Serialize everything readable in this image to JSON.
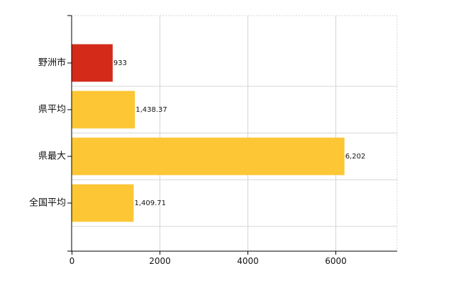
{
  "chart_data": {
    "type": "bar",
    "orientation": "horizontal",
    "categories": [
      "野洲市",
      "県平均",
      "県最大",
      "全国平均"
    ],
    "values": [
      933,
      1438.37,
      6202,
      1409.71
    ],
    "value_labels": [
      "933",
      "1,438.37",
      "6,202",
      "1,409.71"
    ],
    "bar_colors": [
      "#d42a1a",
      "#fcc634",
      "#fcc634",
      "#fcc634"
    ],
    "x_ticks": [
      0,
      2000,
      4000,
      6000
    ],
    "x_tick_labels": [
      "0",
      "2000",
      "4000",
      "6000"
    ],
    "xlim": [
      0,
      7400
    ],
    "grid": true,
    "legend": false
  }
}
